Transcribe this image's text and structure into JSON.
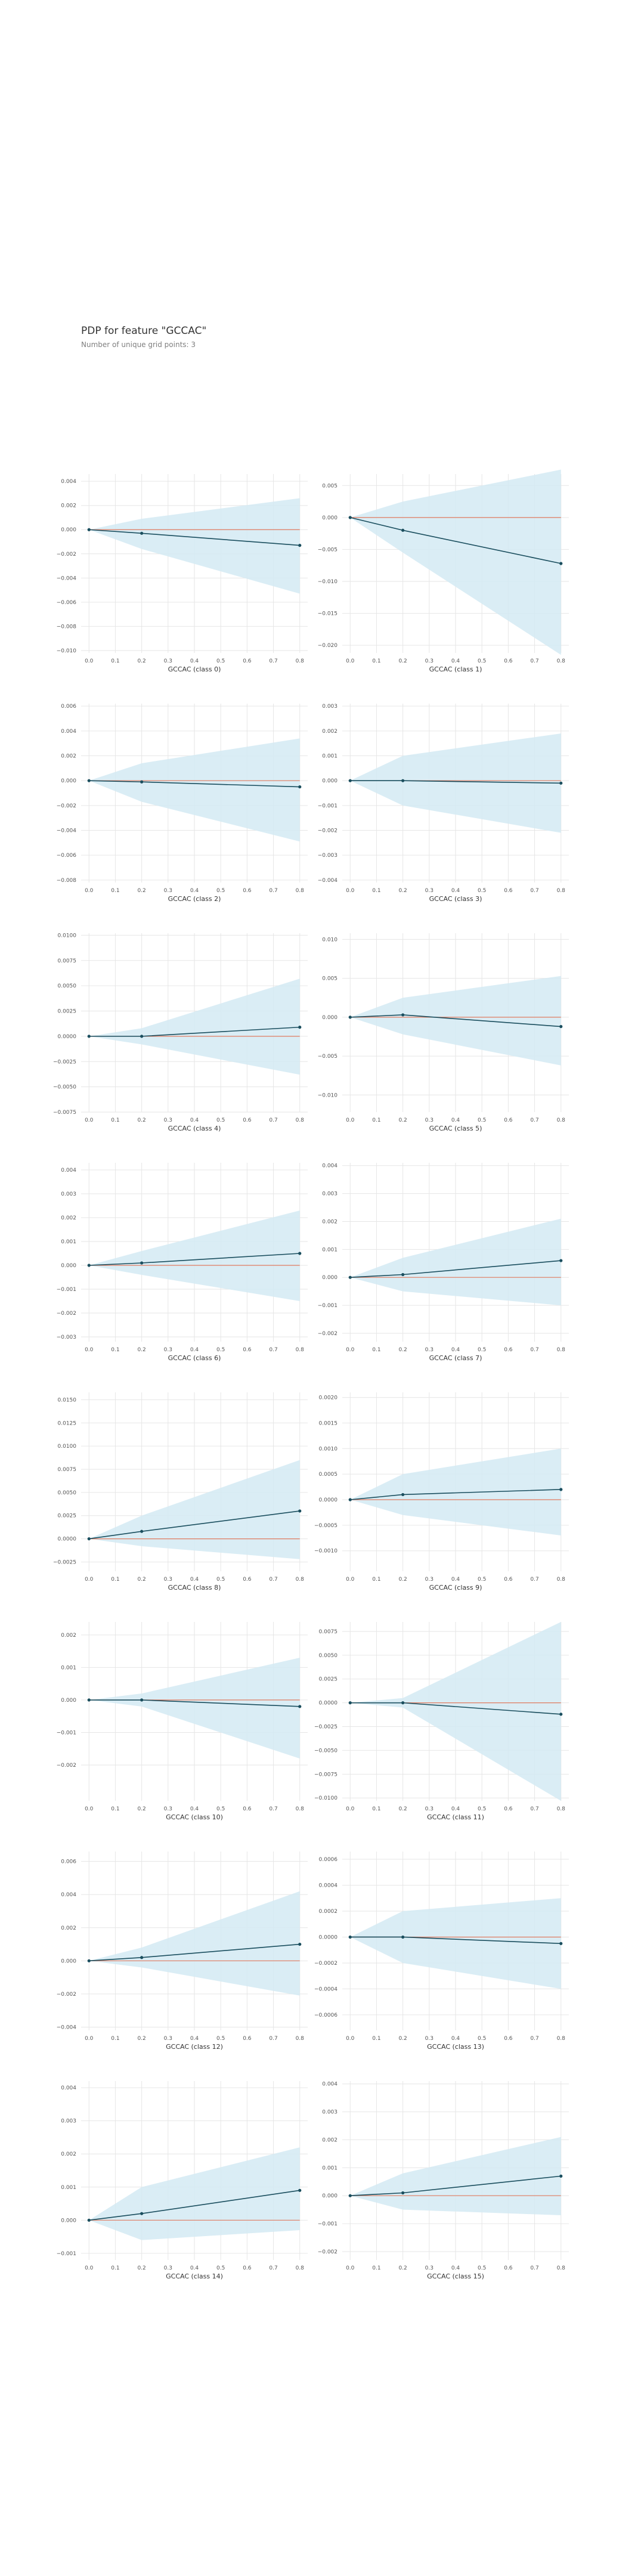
{
  "header": {
    "title": "PDP for feature \"GCCAC\"",
    "subtitle": "Number of unique grid points: 3"
  },
  "colors": {
    "band": "#d4eaf3",
    "line": "#1a4e5e",
    "baseline": "#e07a5f",
    "grid": "#e6e6e6"
  },
  "chart_data": [
    {
      "type": "line",
      "xlabel": "GCCAC (class 0)",
      "x": [
        0,
        0.2,
        0.8
      ],
      "y": [
        0,
        -0.0003,
        -0.0013
      ],
      "upper": [
        0,
        0.0009,
        0.0026
      ],
      "lower": [
        0,
        -0.0016,
        -0.0053
      ],
      "ylim": [
        -0.0102,
        0.0046
      ],
      "yticks": [
        0.004,
        0.002,
        0.0,
        -0.002,
        -0.004,
        -0.006,
        -0.008,
        -0.01
      ],
      "ytick_labels": [
        "0.004",
        "0.002",
        "0.000",
        "−0.002",
        "−0.004",
        "−0.006",
        "−0.008",
        "−0.010"
      ],
      "xticks": [
        0,
        0.1,
        0.2,
        0.3,
        0.4,
        0.5,
        0.6,
        0.7,
        0.8
      ],
      "xtick_labels": [
        "0.0",
        "0.1",
        "0.2",
        "0.3",
        "0.4",
        "0.5",
        "0.6",
        "0.7",
        "0.8"
      ]
    },
    {
      "type": "line",
      "xlabel": "GCCAC (class 1)",
      "x": [
        0,
        0.2,
        0.8
      ],
      "y": [
        0,
        -0.002,
        -0.0072
      ],
      "upper": [
        0,
        0.0025,
        0.0075
      ],
      "lower": [
        0,
        -0.0055,
        -0.0215
      ],
      "ylim": [
        -0.0212,
        0.0068
      ],
      "yticks": [
        0.005,
        0.0,
        -0.005,
        -0.01,
        -0.015,
        -0.02
      ],
      "ytick_labels": [
        "0.005",
        "0.000",
        "−0.005",
        "−0.010",
        "−0.015",
        "−0.020"
      ],
      "xticks": [
        0,
        0.1,
        0.2,
        0.3,
        0.4,
        0.5,
        0.6,
        0.7,
        0.8
      ],
      "xtick_labels": [
        "0.0",
        "0.1",
        "0.2",
        "0.3",
        "0.4",
        "0.5",
        "0.6",
        "0.7",
        "0.8"
      ]
    },
    {
      "type": "line",
      "xlabel": "GCCAC (class 2)",
      "x": [
        0,
        0.2,
        0.8
      ],
      "y": [
        0,
        -0.0001,
        -0.0005
      ],
      "upper": [
        0,
        0.0014,
        0.0034
      ],
      "lower": [
        0,
        -0.0017,
        -0.0049
      ],
      "ylim": [
        -0.0082,
        0.0062
      ],
      "yticks": [
        0.006,
        0.004,
        0.002,
        0.0,
        -0.002,
        -0.004,
        -0.006,
        -0.008
      ],
      "ytick_labels": [
        "0.006",
        "0.004",
        "0.002",
        "0.000",
        "−0.002",
        "−0.004",
        "−0.006",
        "−0.008"
      ],
      "xticks": [
        0,
        0.1,
        0.2,
        0.3,
        0.4,
        0.5,
        0.6,
        0.7,
        0.8
      ],
      "xtick_labels": [
        "0.0",
        "0.1",
        "0.2",
        "0.3",
        "0.4",
        "0.5",
        "0.6",
        "0.7",
        "0.8"
      ]
    },
    {
      "type": "line",
      "xlabel": "GCCAC (class 3)",
      "x": [
        0,
        0.2,
        0.8
      ],
      "y": [
        0,
        0.0,
        -0.0001
      ],
      "upper": [
        0,
        0.001,
        0.0019
      ],
      "lower": [
        0,
        -0.001,
        -0.0021
      ],
      "ylim": [
        -0.0041,
        0.0031
      ],
      "yticks": [
        0.003,
        0.002,
        0.001,
        0.0,
        -0.001,
        -0.002,
        -0.003,
        -0.004
      ],
      "ytick_labels": [
        "0.003",
        "0.002",
        "0.001",
        "0.000",
        "−0.001",
        "−0.002",
        "−0.003",
        "−0.004"
      ],
      "xticks": [
        0,
        0.1,
        0.2,
        0.3,
        0.4,
        0.5,
        0.6,
        0.7,
        0.8
      ],
      "xtick_labels": [
        "0.0",
        "0.1",
        "0.2",
        "0.3",
        "0.4",
        "0.5",
        "0.6",
        "0.7",
        "0.8"
      ]
    },
    {
      "type": "line",
      "xlabel": "GCCAC (class 4)",
      "x": [
        0,
        0.2,
        0.8
      ],
      "y": [
        0,
        0.0,
        0.0009
      ],
      "upper": [
        0,
        0.0008,
        0.0057
      ],
      "lower": [
        0,
        -0.0008,
        -0.0038
      ],
      "ylim": [
        -0.0075,
        0.0102
      ],
      "yticks": [
        0.01,
        0.0075,
        0.005,
        0.0025,
        0.0,
        -0.0025,
        -0.005,
        -0.0075
      ],
      "ytick_labels": [
        "0.0100",
        "0.0075",
        "0.0050",
        "0.0025",
        "0.0000",
        "−0.0025",
        "−0.0050",
        "−0.0075"
      ],
      "xticks": [
        0,
        0.1,
        0.2,
        0.3,
        0.4,
        0.5,
        0.6,
        0.7,
        0.8
      ],
      "xtick_labels": [
        "0.0",
        "0.1",
        "0.2",
        "0.3",
        "0.4",
        "0.5",
        "0.6",
        "0.7",
        "0.8"
      ]
    },
    {
      "type": "line",
      "xlabel": "GCCAC (class 5)",
      "x": [
        0,
        0.2,
        0.8
      ],
      "y": [
        0,
        0.0003,
        -0.0012
      ],
      "upper": [
        0,
        0.0025,
        0.0053
      ],
      "lower": [
        0,
        -0.0022,
        -0.0062
      ],
      "ylim": [
        -0.0122,
        0.0108
      ],
      "yticks": [
        0.01,
        0.005,
        0.0,
        -0.005,
        -0.01
      ],
      "ytick_labels": [
        "0.010",
        "0.005",
        "0.000",
        "−0.005",
        "−0.010"
      ],
      "xticks": [
        0,
        0.1,
        0.2,
        0.3,
        0.4,
        0.5,
        0.6,
        0.7,
        0.8
      ],
      "xtick_labels": [
        "0.0",
        "0.1",
        "0.2",
        "0.3",
        "0.4",
        "0.5",
        "0.6",
        "0.7",
        "0.8"
      ]
    },
    {
      "type": "line",
      "xlabel": "GCCAC (class 6)",
      "x": [
        0,
        0.2,
        0.8
      ],
      "y": [
        0,
        0.0001,
        0.0005
      ],
      "upper": [
        0,
        0.0006,
        0.0023
      ],
      "lower": [
        0,
        -0.0004,
        -0.0015
      ],
      "ylim": [
        -0.0032,
        0.0043
      ],
      "yticks": [
        0.004,
        0.003,
        0.002,
        0.001,
        0.0,
        -0.001,
        -0.002,
        -0.003
      ],
      "ytick_labels": [
        "0.004",
        "0.003",
        "0.002",
        "0.001",
        "0.000",
        "−0.001",
        "−0.002",
        "−0.003"
      ],
      "xticks": [
        0,
        0.1,
        0.2,
        0.3,
        0.4,
        0.5,
        0.6,
        0.7,
        0.8
      ],
      "xtick_labels": [
        "0.0",
        "0.1",
        "0.2",
        "0.3",
        "0.4",
        "0.5",
        "0.6",
        "0.7",
        "0.8"
      ]
    },
    {
      "type": "line",
      "xlabel": "GCCAC (class 7)",
      "x": [
        0,
        0.2,
        0.8
      ],
      "y": [
        0,
        0.0001,
        0.0006
      ],
      "upper": [
        0,
        0.0007,
        0.0021
      ],
      "lower": [
        0,
        -0.0005,
        -0.001
      ],
      "ylim": [
        -0.0023,
        0.0041
      ],
      "yticks": [
        0.004,
        0.003,
        0.002,
        0.001,
        0.0,
        -0.001,
        -0.002
      ],
      "ytick_labels": [
        "0.004",
        "0.003",
        "0.002",
        "0.001",
        "0.000",
        "−0.001",
        "−0.002"
      ],
      "xticks": [
        0,
        0.1,
        0.2,
        0.3,
        0.4,
        0.5,
        0.6,
        0.7,
        0.8
      ],
      "xtick_labels": [
        "0.0",
        "0.1",
        "0.2",
        "0.3",
        "0.4",
        "0.5",
        "0.6",
        "0.7",
        "0.8"
      ]
    },
    {
      "type": "line",
      "xlabel": "GCCAC (class 8)",
      "x": [
        0,
        0.2,
        0.8
      ],
      "y": [
        0,
        0.0008,
        0.003
      ],
      "upper": [
        0,
        0.0025,
        0.0085
      ],
      "lower": [
        0,
        -0.0008,
        -0.0022
      ],
      "ylim": [
        -0.0035,
        0.0158
      ],
      "yticks": [
        0.015,
        0.0125,
        0.01,
        0.0075,
        0.005,
        0.0025,
        0.0,
        -0.0025
      ],
      "ytick_labels": [
        "0.0150",
        "0.0125",
        "0.0100",
        "0.0075",
        "0.0050",
        "0.0025",
        "0.0000",
        "−0.0025"
      ],
      "xticks": [
        0,
        0.1,
        0.2,
        0.3,
        0.4,
        0.5,
        0.6,
        0.7,
        0.8
      ],
      "xtick_labels": [
        "0.0",
        "0.1",
        "0.2",
        "0.3",
        "0.4",
        "0.5",
        "0.6",
        "0.7",
        "0.8"
      ]
    },
    {
      "type": "line",
      "xlabel": "GCCAC (class 9)",
      "x": [
        0,
        0.2,
        0.8
      ],
      "y": [
        0,
        0.0001,
        0.0002
      ],
      "upper": [
        0,
        0.0005,
        0.001
      ],
      "lower": [
        0,
        -0.0003,
        -0.0007
      ],
      "ylim": [
        -0.0014,
        0.0021
      ],
      "yticks": [
        0.002,
        0.0015,
        0.001,
        0.0005,
        0.0,
        -0.0005,
        -0.001
      ],
      "ytick_labels": [
        "0.0020",
        "0.0015",
        "0.0010",
        "0.0005",
        "0.0000",
        "−0.0005",
        "−0.0010"
      ],
      "xticks": [
        0,
        0.1,
        0.2,
        0.3,
        0.4,
        0.5,
        0.6,
        0.7,
        0.8
      ],
      "xtick_labels": [
        "0.0",
        "0.1",
        "0.2",
        "0.3",
        "0.4",
        "0.5",
        "0.6",
        "0.7",
        "0.8"
      ]
    },
    {
      "type": "line",
      "xlabel": "GCCAC (class 10)",
      "x": [
        0,
        0.2,
        0.8
      ],
      "y": [
        0,
        0.0,
        -0.0002
      ],
      "upper": [
        0,
        0.0002,
        0.0013
      ],
      "lower": [
        0,
        -0.0002,
        -0.0018
      ],
      "ylim": [
        -0.0031,
        0.0024
      ],
      "yticks": [
        0.002,
        0.001,
        0.0,
        -0.001,
        -0.002
      ],
      "ytick_labels": [
        "0.002",
        "0.001",
        "0.000",
        "−0.001",
        "−0.002"
      ],
      "xticks": [
        0,
        0.1,
        0.2,
        0.3,
        0.4,
        0.5,
        0.6,
        0.7,
        0.8
      ],
      "xtick_labels": [
        "0.0",
        "0.1",
        "0.2",
        "0.3",
        "0.4",
        "0.5",
        "0.6",
        "0.7",
        "0.8"
      ]
    },
    {
      "type": "line",
      "xlabel": "GCCAC (class 11)",
      "x": [
        0,
        0.2,
        0.8
      ],
      "y": [
        0,
        0.0,
        -0.0012
      ],
      "upper": [
        0,
        0.0005,
        0.0085
      ],
      "lower": [
        0,
        -0.0005,
        -0.0103
      ],
      "ylim": [
        -0.0103,
        0.0085
      ],
      "yticks": [
        0.0075,
        0.005,
        0.0025,
        0.0,
        -0.0025,
        -0.005,
        -0.0075,
        -0.01
      ],
      "ytick_labels": [
        "0.0075",
        "0.0050",
        "0.0025",
        "0.0000",
        "−0.0025",
        "−0.0050",
        "−0.0075",
        "−0.0100"
      ],
      "xticks": [
        0,
        0.1,
        0.2,
        0.3,
        0.4,
        0.5,
        0.6,
        0.7,
        0.8
      ],
      "xtick_labels": [
        "0.0",
        "0.1",
        "0.2",
        "0.3",
        "0.4",
        "0.5",
        "0.6",
        "0.7",
        "0.8"
      ]
    },
    {
      "type": "line",
      "xlabel": "GCCAC (class 12)",
      "x": [
        0,
        0.2,
        0.8
      ],
      "y": [
        0,
        0.0002,
        0.001
      ],
      "upper": [
        0,
        0.0008,
        0.0042
      ],
      "lower": [
        0,
        -0.0004,
        -0.0021
      ],
      "ylim": [
        -0.0042,
        0.0066
      ],
      "yticks": [
        0.006,
        0.004,
        0.002,
        0.0,
        -0.002,
        -0.004
      ],
      "ytick_labels": [
        "0.006",
        "0.004",
        "0.002",
        "0.000",
        "−0.002",
        "−0.004"
      ],
      "xticks": [
        0,
        0.1,
        0.2,
        0.3,
        0.4,
        0.5,
        0.6,
        0.7,
        0.8
      ],
      "xtick_labels": [
        "0.0",
        "0.1",
        "0.2",
        "0.3",
        "0.4",
        "0.5",
        "0.6",
        "0.7",
        "0.8"
      ]
    },
    {
      "type": "line",
      "xlabel": "GCCAC (class 13)",
      "x": [
        0,
        0.2,
        0.8
      ],
      "y": [
        0,
        0.0,
        -5e-05
      ],
      "upper": [
        0,
        0.0002,
        0.0003
      ],
      "lower": [
        0,
        -0.0002,
        -0.0004
      ],
      "ylim": [
        -0.00072,
        0.00066
      ],
      "yticks": [
        0.0006,
        0.0004,
        0.0002,
        0.0,
        -0.0002,
        -0.0004,
        -0.0006
      ],
      "ytick_labels": [
        "0.0006",
        "0.0004",
        "0.0002",
        "0.0000",
        "−0.0002",
        "−0.0004",
        "−0.0006"
      ],
      "xticks": [
        0,
        0.1,
        0.2,
        0.3,
        0.4,
        0.5,
        0.6,
        0.7,
        0.8
      ],
      "xtick_labels": [
        "0.0",
        "0.1",
        "0.2",
        "0.3",
        "0.4",
        "0.5",
        "0.6",
        "0.7",
        "0.8"
      ]
    },
    {
      "type": "line",
      "xlabel": "GCCAC (class 14)",
      "x": [
        0,
        0.2,
        0.8
      ],
      "y": [
        0,
        0.0002,
        0.0009
      ],
      "upper": [
        0,
        0.001,
        0.0022
      ],
      "lower": [
        0,
        -0.0006,
        -0.0003
      ],
      "ylim": [
        -0.0012,
        0.0042
      ],
      "yticks": [
        0.004,
        0.003,
        0.002,
        0.001,
        0.0,
        -0.001
      ],
      "ytick_labels": [
        "0.004",
        "0.003",
        "0.002",
        "0.001",
        "0.000",
        "−0.001"
      ],
      "xticks": [
        0,
        0.1,
        0.2,
        0.3,
        0.4,
        0.5,
        0.6,
        0.7,
        0.8
      ],
      "xtick_labels": [
        "0.0",
        "0.1",
        "0.2",
        "0.3",
        "0.4",
        "0.5",
        "0.6",
        "0.7",
        "0.8"
      ]
    },
    {
      "type": "line",
      "xlabel": "GCCAC (class 15)",
      "x": [
        0,
        0.2,
        0.8
      ],
      "y": [
        0,
        0.0001,
        0.0007
      ],
      "upper": [
        0,
        0.0008,
        0.0021
      ],
      "lower": [
        0,
        -0.0005,
        -0.0007
      ],
      "ylim": [
        -0.0023,
        0.0041
      ],
      "yticks": [
        0.004,
        0.003,
        0.002,
        0.001,
        0.0,
        -0.001,
        -0.002
      ],
      "ytick_labels": [
        "0.004",
        "0.003",
        "0.002",
        "0.001",
        "0.000",
        "−0.001",
        "−0.002"
      ],
      "xticks": [
        0,
        0.1,
        0.2,
        0.3,
        0.4,
        0.5,
        0.6,
        0.7,
        0.8
      ],
      "xtick_labels": [
        "0.0",
        "0.1",
        "0.2",
        "0.3",
        "0.4",
        "0.5",
        "0.6",
        "0.7",
        "0.8"
      ]
    }
  ]
}
